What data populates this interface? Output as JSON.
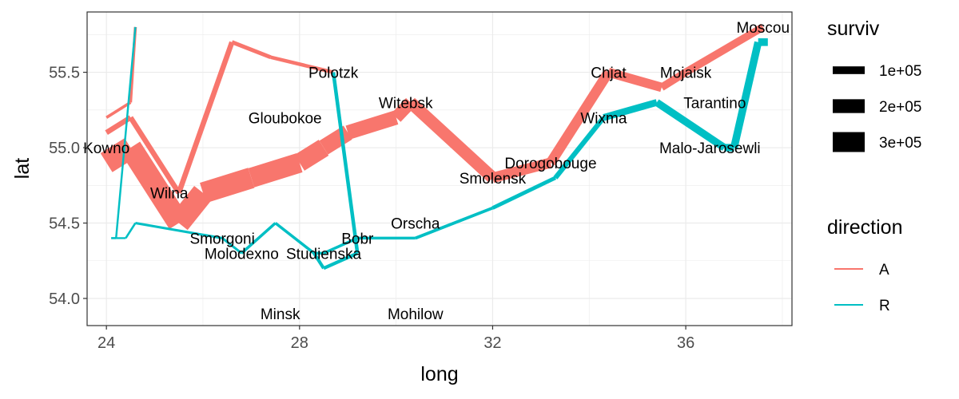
{
  "chart_data": {
    "type": "line",
    "xlabel": "long",
    "ylabel": "lat",
    "xlim": [
      23.6,
      38.2
    ],
    "ylim": [
      53.82,
      55.9
    ],
    "x_ticks": [
      24,
      28,
      32,
      36
    ],
    "x_tick_labels": [
      "24",
      "28",
      "32",
      "36"
    ],
    "y_ticks": [
      54.0,
      54.5,
      55.0,
      55.5
    ],
    "y_tick_labels": [
      "54.0",
      "54.5",
      "55.0",
      "55.5"
    ],
    "grid": true,
    "colors": {
      "A": "#F8766D",
      "R": "#00BFC4"
    },
    "legend_size": {
      "title": "surviv",
      "entries": [
        {
          "label": "1e+05",
          "value": 100000
        },
        {
          "label": "2e+05",
          "value": 200000
        },
        {
          "label": "3e+05",
          "value": 300000
        }
      ]
    },
    "legend_color": {
      "title": "direction",
      "entries": [
        {
          "label": "A",
          "color": "#F8766D"
        },
        {
          "label": "R",
          "color": "#00BFC4"
        }
      ]
    },
    "series": [
      {
        "name": "A",
        "group": 1,
        "points": [
          {
            "x": 24.0,
            "y": 54.9,
            "surviv": 340000
          },
          {
            "x": 24.5,
            "y": 55.0,
            "surviv": 340000
          },
          {
            "x": 25.5,
            "y": 54.5,
            "surviv": 340000
          },
          {
            "x": 26.0,
            "y": 54.7,
            "surviv": 320000
          },
          {
            "x": 27.0,
            "y": 54.8,
            "surviv": 300000
          },
          {
            "x": 28.0,
            "y": 54.9,
            "surviv": 280000
          },
          {
            "x": 28.5,
            "y": 55.0,
            "surviv": 240000
          },
          {
            "x": 29.0,
            "y": 55.1,
            "surviv": 210000
          },
          {
            "x": 30.0,
            "y": 55.2,
            "surviv": 180000
          },
          {
            "x": 30.3,
            "y": 55.3,
            "surviv": 175000
          },
          {
            "x": 32.0,
            "y": 54.8,
            "surviv": 145000
          },
          {
            "x": 33.2,
            "y": 54.9,
            "surviv": 140000
          },
          {
            "x": 34.4,
            "y": 55.5,
            "surviv": 127100
          },
          {
            "x": 35.5,
            "y": 55.4,
            "surviv": 100000
          },
          {
            "x": 36.0,
            "y": 55.5,
            "surviv": 100000
          },
          {
            "x": 37.6,
            "y": 55.8,
            "surviv": 100000
          }
        ]
      },
      {
        "name": "R",
        "group": 1,
        "points": [
          {
            "x": 37.7,
            "y": 55.7,
            "surviv": 100000
          },
          {
            "x": 37.5,
            "y": 55.7,
            "surviv": 98000
          },
          {
            "x": 37.0,
            "y": 55.0,
            "surviv": 97000
          },
          {
            "x": 36.8,
            "y": 55.0,
            "surviv": 96000
          },
          {
            "x": 35.4,
            "y": 55.3,
            "surviv": 87000
          },
          {
            "x": 34.3,
            "y": 55.2,
            "surviv": 55000
          },
          {
            "x": 33.3,
            "y": 54.8,
            "surviv": 37000
          },
          {
            "x": 32.0,
            "y": 54.6,
            "surviv": 24000
          },
          {
            "x": 30.4,
            "y": 54.4,
            "surviv": 20000
          },
          {
            "x": 29.2,
            "y": 54.4,
            "surviv": 20000
          },
          {
            "x": 28.5,
            "y": 54.3,
            "surviv": 20000
          },
          {
            "x": 28.3,
            "y": 54.3,
            "surviv": 20000
          },
          {
            "x": 27.5,
            "y": 54.5,
            "surviv": 20000
          },
          {
            "x": 26.8,
            "y": 54.3,
            "surviv": 12000
          },
          {
            "x": 26.4,
            "y": 54.4,
            "surviv": 14000
          },
          {
            "x": 24.6,
            "y": 54.5,
            "surviv": 8000
          },
          {
            "x": 24.4,
            "y": 54.4,
            "surviv": 4000
          },
          {
            "x": 24.2,
            "y": 54.4,
            "surviv": 4000
          },
          {
            "x": 24.1,
            "y": 54.4,
            "surviv": 4000
          }
        ]
      },
      {
        "name": "A",
        "group": 2,
        "points": [
          {
            "x": 24.0,
            "y": 55.1,
            "surviv": 60000
          },
          {
            "x": 24.5,
            "y": 55.2,
            "surviv": 60000
          },
          {
            "x": 25.5,
            "y": 54.7,
            "surviv": 60000
          },
          {
            "x": 26.6,
            "y": 55.7,
            "surviv": 40000
          },
          {
            "x": 27.4,
            "y": 55.6,
            "surviv": 33000
          },
          {
            "x": 28.7,
            "y": 55.5,
            "surviv": 33000
          }
        ]
      },
      {
        "name": "R",
        "group": 2,
        "points": [
          {
            "x": 28.7,
            "y": 55.5,
            "surviv": 33000
          },
          {
            "x": 29.2,
            "y": 54.3,
            "surviv": 30000
          },
          {
            "x": 28.5,
            "y": 54.2,
            "surviv": 28000
          },
          {
            "x": 28.3,
            "y": 54.3,
            "surviv": 28000
          }
        ]
      },
      {
        "name": "A",
        "group": 3,
        "points": [
          {
            "x": 24.0,
            "y": 55.2,
            "surviv": 22000
          },
          {
            "x": 24.5,
            "y": 55.3,
            "surviv": 22000
          },
          {
            "x": 24.6,
            "y": 55.8,
            "surviv": 6000
          }
        ]
      },
      {
        "name": "R",
        "group": 3,
        "points": [
          {
            "x": 24.6,
            "y": 55.8,
            "surviv": 6000
          },
          {
            "x": 24.2,
            "y": 54.4,
            "surviv": 6000
          },
          {
            "x": 24.1,
            "y": 54.4,
            "surviv": 6000
          }
        ]
      }
    ],
    "city_labels": [
      {
        "name": "Kowno",
        "x": 24.0,
        "y": 55.0
      },
      {
        "name": "Wilna",
        "x": 25.3,
        "y": 54.7
      },
      {
        "name": "Smorgoni",
        "x": 26.4,
        "y": 54.4
      },
      {
        "name": "Molodexno",
        "x": 26.8,
        "y": 54.3
      },
      {
        "name": "Gloubokoe",
        "x": 27.7,
        "y": 55.2
      },
      {
        "name": "Minsk",
        "x": 27.6,
        "y": 53.9
      },
      {
        "name": "Studienska",
        "x": 28.5,
        "y": 54.3
      },
      {
        "name": "Polotzk",
        "x": 28.7,
        "y": 55.5
      },
      {
        "name": "Bobr",
        "x": 29.2,
        "y": 54.4
      },
      {
        "name": "Witebsk",
        "x": 30.2,
        "y": 55.3
      },
      {
        "name": "Orscha",
        "x": 30.4,
        "y": 54.5
      },
      {
        "name": "Mohilow",
        "x": 30.4,
        "y": 53.9
      },
      {
        "name": "Smolensk",
        "x": 32.0,
        "y": 54.8
      },
      {
        "name": "Dorogobouge",
        "x": 33.2,
        "y": 54.9
      },
      {
        "name": "Wixma",
        "x": 34.3,
        "y": 55.2
      },
      {
        "name": "Chjat",
        "x": 34.4,
        "y": 55.5
      },
      {
        "name": "Mojaisk",
        "x": 36.0,
        "y": 55.5
      },
      {
        "name": "Moscou",
        "x": 37.6,
        "y": 55.8
      },
      {
        "name": "Tarantino",
        "x": 36.6,
        "y": 55.3
      },
      {
        "name": "Malo-Jarosewli",
        "x": 36.5,
        "y": 55.0
      }
    ]
  }
}
